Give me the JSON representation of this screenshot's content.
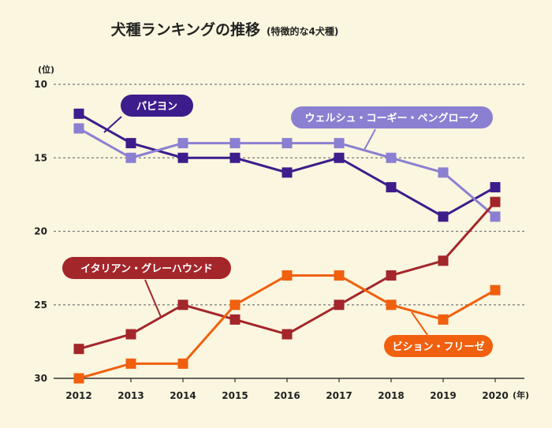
{
  "chart_data": {
    "type": "line",
    "title": "犬種ランキングの推移",
    "subtitle": "(特徴的な4犬種)",
    "y_unit": "(位)",
    "x_unit": "(年)",
    "ylim": [
      10,
      30
    ],
    "y_inverted": true,
    "y_ticks": [
      "10",
      "15",
      "20",
      "25",
      "30"
    ],
    "x_ticks": [
      "2012",
      "2013",
      "2014",
      "2015",
      "2016",
      "2017",
      "2018",
      "2019",
      "2020"
    ],
    "grid": "horizontal-dotted",
    "series": [
      {
        "name": "パピヨン",
        "color": "#3d1c8c",
        "values": [
          12,
          14,
          15,
          15,
          16,
          15,
          17,
          19,
          17
        ]
      },
      {
        "name": "ウェルシュ・コーギー・ペングローク",
        "color": "#8b7fd2",
        "values": [
          13,
          15,
          14,
          14,
          14,
          14,
          15,
          16,
          19
        ]
      },
      {
        "name": "イタリアン・グレーハウンド",
        "color": "#a3262b",
        "values": [
          28,
          27,
          25,
          26,
          27,
          25,
          23,
          22,
          18
        ]
      },
      {
        "name": "ビション・フリーゼ",
        "color": "#f0600f",
        "values": [
          30,
          29,
          29,
          25,
          23,
          23,
          25,
          26,
          24
        ]
      }
    ]
  }
}
